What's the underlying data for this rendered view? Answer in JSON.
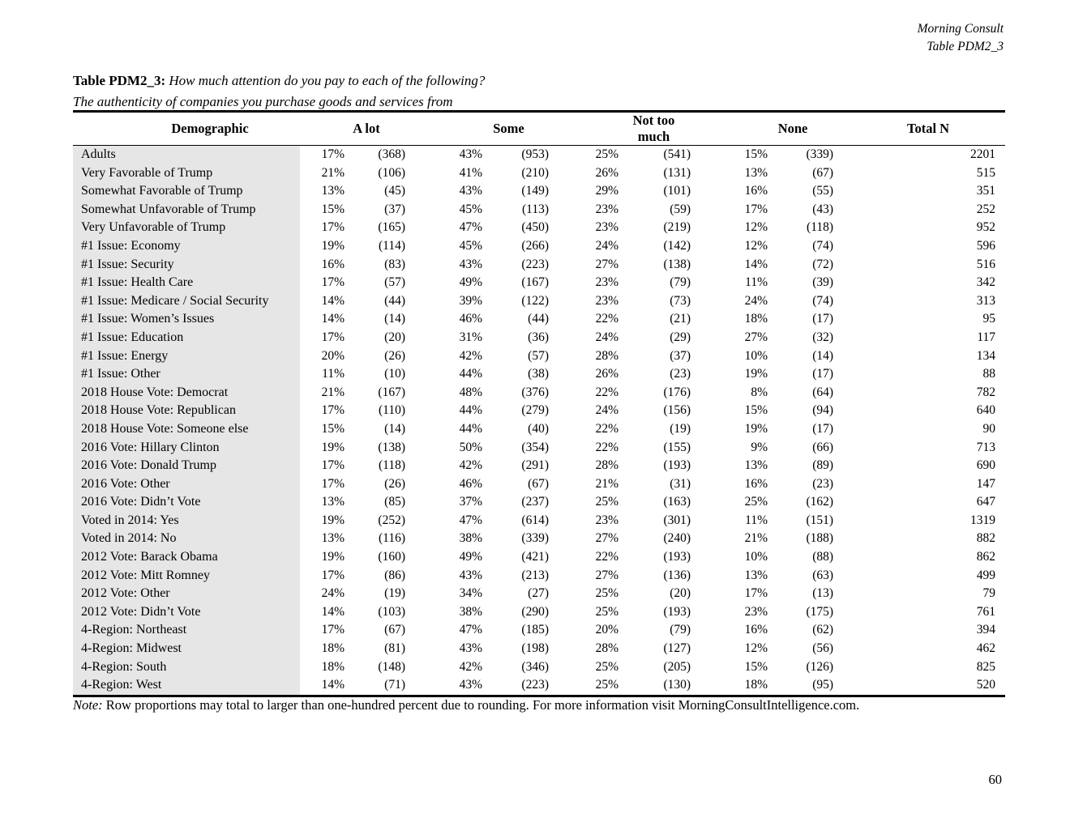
{
  "header": {
    "line1": "Morning Consult",
    "line2": "Table PDM2_3"
  },
  "title": {
    "label": "Table PDM2_3:",
    "question": "How much attention do you pay to each of the following?",
    "subtitle": "The authenticity of companies you purchase goods and services from"
  },
  "table": {
    "columns": [
      "Demographic",
      "A lot",
      "Some",
      "Not too much",
      "None",
      "Total N"
    ],
    "rows": [
      [
        "Adults",
        "17%",
        "(368)",
        "43%",
        "(953)",
        "25%",
        "(541)",
        "15%",
        "(339)",
        "2201"
      ],
      [
        "Very Favorable of Trump",
        "21%",
        "(106)",
        "41%",
        "(210)",
        "26%",
        "(131)",
        "13%",
        "(67)",
        "515"
      ],
      [
        "Somewhat Favorable of Trump",
        "13%",
        "(45)",
        "43%",
        "(149)",
        "29%",
        "(101)",
        "16%",
        "(55)",
        "351"
      ],
      [
        "Somewhat Unfavorable of Trump",
        "15%",
        "(37)",
        "45%",
        "(113)",
        "23%",
        "(59)",
        "17%",
        "(43)",
        "252"
      ],
      [
        "Very Unfavorable of Trump",
        "17%",
        "(165)",
        "47%",
        "(450)",
        "23%",
        "(219)",
        "12%",
        "(118)",
        "952"
      ],
      [
        "#1 Issue: Economy",
        "19%",
        "(114)",
        "45%",
        "(266)",
        "24%",
        "(142)",
        "12%",
        "(74)",
        "596"
      ],
      [
        "#1 Issue: Security",
        "16%",
        "(83)",
        "43%",
        "(223)",
        "27%",
        "(138)",
        "14%",
        "(72)",
        "516"
      ],
      [
        "#1 Issue: Health Care",
        "17%",
        "(57)",
        "49%",
        "(167)",
        "23%",
        "(79)",
        "11%",
        "(39)",
        "342"
      ],
      [
        "#1 Issue: Medicare / Social Security",
        "14%",
        "(44)",
        "39%",
        "(122)",
        "23%",
        "(73)",
        "24%",
        "(74)",
        "313"
      ],
      [
        "#1 Issue: Women’s Issues",
        "14%",
        "(14)",
        "46%",
        "(44)",
        "22%",
        "(21)",
        "18%",
        "(17)",
        "95"
      ],
      [
        "#1 Issue: Education",
        "17%",
        "(20)",
        "31%",
        "(36)",
        "24%",
        "(29)",
        "27%",
        "(32)",
        "117"
      ],
      [
        "#1 Issue: Energy",
        "20%",
        "(26)",
        "42%",
        "(57)",
        "28%",
        "(37)",
        "10%",
        "(14)",
        "134"
      ],
      [
        "#1 Issue: Other",
        "11%",
        "(10)",
        "44%",
        "(38)",
        "26%",
        "(23)",
        "19%",
        "(17)",
        "88"
      ],
      [
        "2018 House Vote: Democrat",
        "21%",
        "(167)",
        "48%",
        "(376)",
        "22%",
        "(176)",
        "8%",
        "(64)",
        "782"
      ],
      [
        "2018 House Vote: Republican",
        "17%",
        "(110)",
        "44%",
        "(279)",
        "24%",
        "(156)",
        "15%",
        "(94)",
        "640"
      ],
      [
        "2018 House Vote: Someone else",
        "15%",
        "(14)",
        "44%",
        "(40)",
        "22%",
        "(19)",
        "19%",
        "(17)",
        "90"
      ],
      [
        "2016 Vote: Hillary Clinton",
        "19%",
        "(138)",
        "50%",
        "(354)",
        "22%",
        "(155)",
        "9%",
        "(66)",
        "713"
      ],
      [
        "2016 Vote: Donald Trump",
        "17%",
        "(118)",
        "42%",
        "(291)",
        "28%",
        "(193)",
        "13%",
        "(89)",
        "690"
      ],
      [
        "2016 Vote: Other",
        "17%",
        "(26)",
        "46%",
        "(67)",
        "21%",
        "(31)",
        "16%",
        "(23)",
        "147"
      ],
      [
        "2016 Vote: Didn’t Vote",
        "13%",
        "(85)",
        "37%",
        "(237)",
        "25%",
        "(163)",
        "25%",
        "(162)",
        "647"
      ],
      [
        "Voted in 2014: Yes",
        "19%",
        "(252)",
        "47%",
        "(614)",
        "23%",
        "(301)",
        "11%",
        "(151)",
        "1319"
      ],
      [
        "Voted in 2014: No",
        "13%",
        "(116)",
        "38%",
        "(339)",
        "27%",
        "(240)",
        "21%",
        "(188)",
        "882"
      ],
      [
        "2012 Vote: Barack Obama",
        "19%",
        "(160)",
        "49%",
        "(421)",
        "22%",
        "(193)",
        "10%",
        "(88)",
        "862"
      ],
      [
        "2012 Vote: Mitt Romney",
        "17%",
        "(86)",
        "43%",
        "(213)",
        "27%",
        "(136)",
        "13%",
        "(63)",
        "499"
      ],
      [
        "2012 Vote: Other",
        "24%",
        "(19)",
        "34%",
        "(27)",
        "25%",
        "(20)",
        "17%",
        "(13)",
        "79"
      ],
      [
        "2012 Vote: Didn’t Vote",
        "14%",
        "(103)",
        "38%",
        "(290)",
        "25%",
        "(193)",
        "23%",
        "(175)",
        "761"
      ],
      [
        "4-Region: Northeast",
        "17%",
        "(67)",
        "47%",
        "(185)",
        "20%",
        "(79)",
        "16%",
        "(62)",
        "394"
      ],
      [
        "4-Region: Midwest",
        "18%",
        "(81)",
        "43%",
        "(198)",
        "28%",
        "(127)",
        "12%",
        "(56)",
        "462"
      ],
      [
        "4-Region: South",
        "18%",
        "(148)",
        "42%",
        "(346)",
        "25%",
        "(205)",
        "15%",
        "(126)",
        "825"
      ],
      [
        "4-Region: West",
        "14%",
        "(71)",
        "43%",
        "(223)",
        "25%",
        "(130)",
        "18%",
        "(95)",
        "520"
      ]
    ]
  },
  "note": {
    "label": "Note:",
    "text": "Row proportions may total to larger than one-hundred percent due to rounding. For more information visit MorningConsultIntelligence.com."
  },
  "footer": {
    "page_number": "60"
  }
}
